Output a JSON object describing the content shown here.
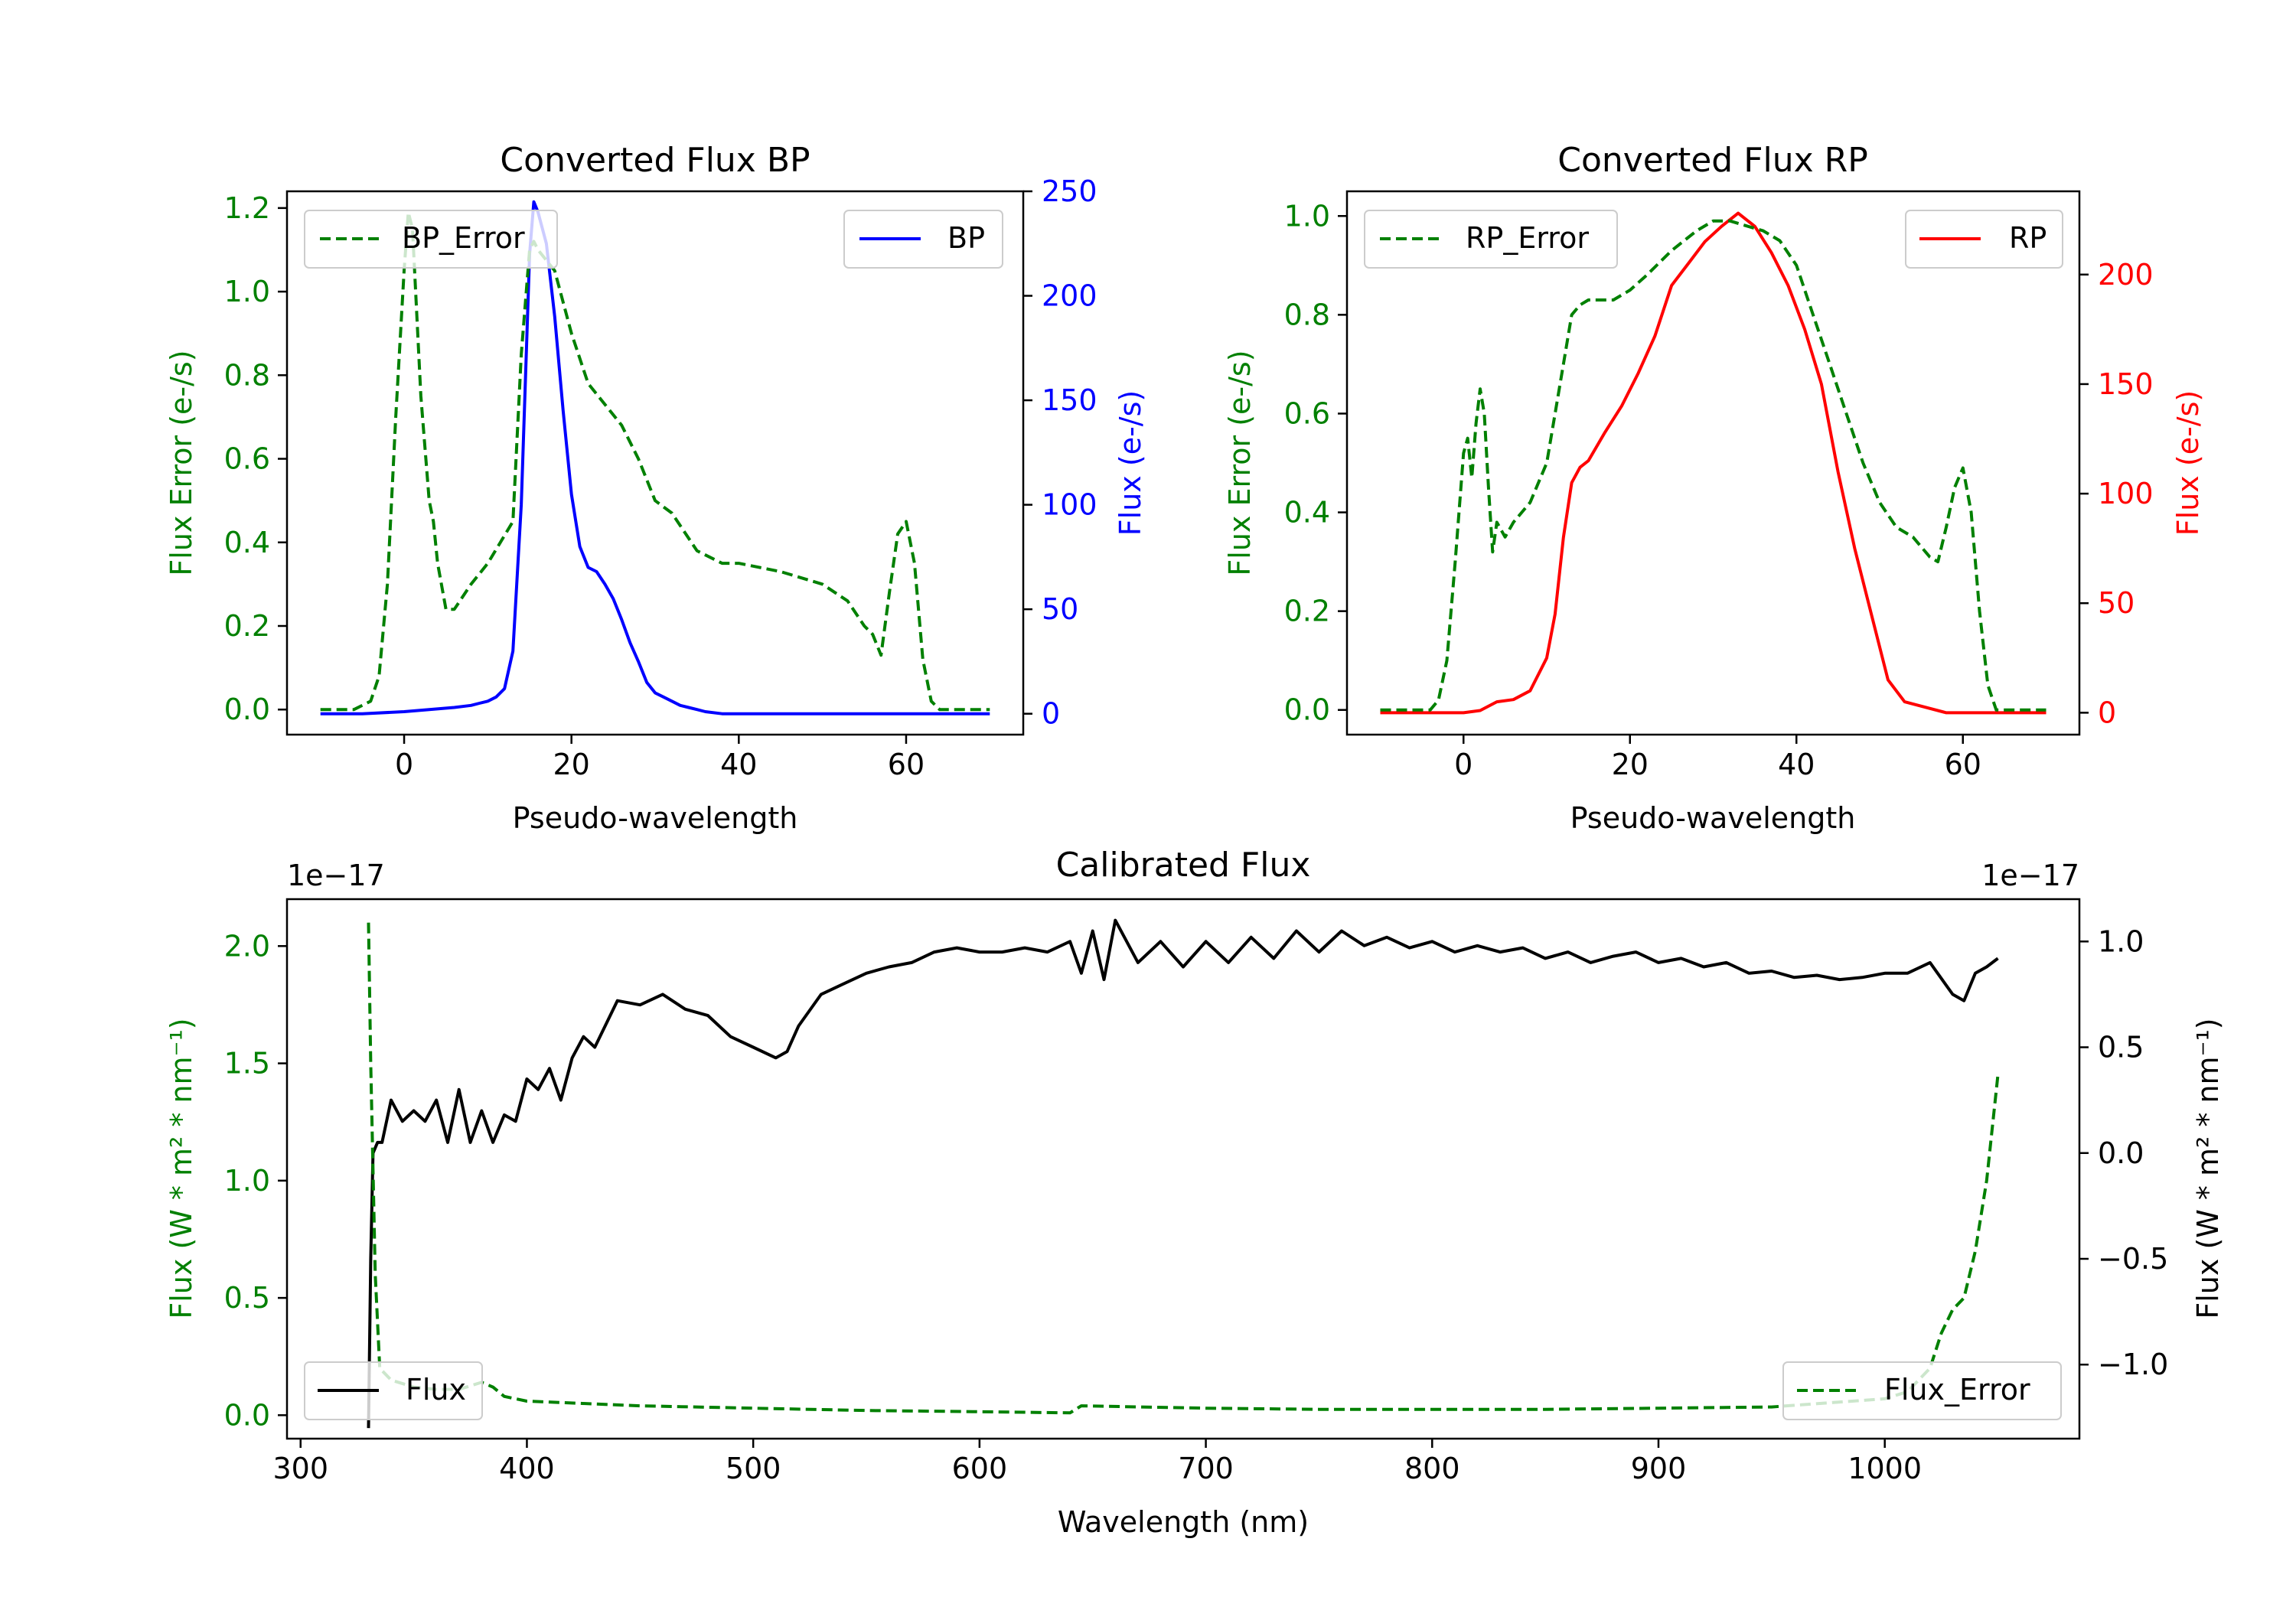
{
  "colors": {
    "error": "#008000",
    "bp": "#0000ff",
    "rp": "#ff0000",
    "flux": "#000000"
  },
  "chart_data": [
    {
      "id": "bp",
      "type": "line",
      "title": "Converted Flux BP",
      "xlabel": "Pseudo-wavelength",
      "ylabel_left": "Flux Error (e-/s)",
      "ylabel_right": "Flux (e-/s)",
      "xlim": [
        -14,
        74
      ],
      "ylim_left": [
        -0.06,
        1.24
      ],
      "ylim_right": [
        -10,
        250
      ],
      "xticks": [
        0,
        20,
        40,
        60
      ],
      "yticks_left": [
        0.0,
        0.2,
        0.4,
        0.6,
        0.8,
        1.0,
        1.2
      ],
      "yticks_right": [
        0,
        50,
        100,
        150,
        200,
        250
      ],
      "legend_left": "BP_Error",
      "legend_right": "BP",
      "error_series": {
        "name": "BP_Error",
        "x": [
          -10,
          -6,
          -4,
          -3,
          -2,
          -1,
          0,
          0.5,
          1,
          2,
          3,
          3.5,
          4,
          5,
          6,
          8,
          10,
          13,
          14,
          15,
          15.5,
          16,
          18,
          20,
          22,
          24,
          26,
          28,
          30,
          32,
          35,
          38,
          40,
          45,
          50,
          53,
          55,
          56,
          57,
          58,
          59,
          60,
          61,
          62,
          63,
          64,
          65,
          70
        ],
        "y": [
          0,
          0,
          0.02,
          0.08,
          0.3,
          0.7,
          1.05,
          1.19,
          1.15,
          0.75,
          0.5,
          0.45,
          0.35,
          0.24,
          0.24,
          0.3,
          0.35,
          0.45,
          0.85,
          1.1,
          1.12,
          1.1,
          1.05,
          0.9,
          0.78,
          0.73,
          0.68,
          0.6,
          0.5,
          0.47,
          0.38,
          0.35,
          0.35,
          0.33,
          0.3,
          0.26,
          0.2,
          0.18,
          0.13,
          0.28,
          0.42,
          0.45,
          0.35,
          0.12,
          0.02,
          0,
          0,
          0
        ]
      },
      "value_series": {
        "name": "BP",
        "x": [
          -10,
          -5,
          0,
          3,
          6,
          8,
          9,
          10,
          11,
          12,
          13,
          14,
          15,
          15.5,
          16,
          17,
          18,
          19,
          20,
          21,
          22,
          23,
          24,
          25,
          26,
          27,
          28,
          29,
          30,
          31,
          32,
          33,
          34,
          35,
          36,
          38,
          40,
          45,
          50,
          55,
          60,
          70
        ],
        "y": [
          0,
          0,
          1,
          2,
          3,
          4,
          5,
          6,
          8,
          12,
          30,
          100,
          220,
          245,
          240,
          225,
          190,
          145,
          105,
          80,
          70,
          68,
          62,
          55,
          45,
          34,
          25,
          15,
          10,
          8,
          6,
          4,
          3,
          2,
          1,
          0,
          0,
          0,
          0,
          0,
          0,
          0
        ]
      }
    },
    {
      "id": "rp",
      "type": "line",
      "title": "Converted Flux RP",
      "xlabel": "Pseudo-wavelength",
      "ylabel_left": "Flux Error (e-/s)",
      "ylabel_right": "Flux (e-/s)",
      "xlim": [
        -14,
        74
      ],
      "ylim_left": [
        -0.05,
        1.05
      ],
      "ylim_right": [
        -10,
        238
      ],
      "xticks": [
        0,
        20,
        40,
        60
      ],
      "yticks_left": [
        0.0,
        0.2,
        0.4,
        0.6,
        0.8,
        1.0
      ],
      "yticks_right": [
        0,
        50,
        100,
        150,
        200
      ],
      "legend_left": "RP_Error",
      "legend_right": "RP",
      "error_series": {
        "name": "RP_Error",
        "x": [
          -10,
          -4,
          -3,
          -2,
          -1,
          0,
          0.5,
          1,
          1.5,
          2,
          2.5,
          3,
          3.5,
          4,
          5,
          6,
          8,
          10,
          12,
          13,
          14,
          15,
          18,
          20,
          22,
          25,
          28,
          30,
          32,
          34,
          36,
          38,
          40,
          42,
          44,
          46,
          48,
          50,
          52,
          54,
          55,
          56,
          57,
          58,
          59,
          60,
          61,
          62,
          63,
          64,
          70
        ],
        "y": [
          0,
          0,
          0.02,
          0.1,
          0.3,
          0.52,
          0.55,
          0.47,
          0.58,
          0.65,
          0.6,
          0.45,
          0.32,
          0.38,
          0.35,
          0.38,
          0.42,
          0.5,
          0.7,
          0.8,
          0.82,
          0.83,
          0.83,
          0.85,
          0.88,
          0.93,
          0.97,
          0.99,
          0.99,
          0.98,
          0.97,
          0.95,
          0.9,
          0.8,
          0.7,
          0.6,
          0.5,
          0.42,
          0.37,
          0.35,
          0.33,
          0.31,
          0.3,
          0.37,
          0.45,
          0.49,
          0.4,
          0.2,
          0.05,
          0,
          0
        ]
      },
      "value_series": {
        "name": "RP",
        "x": [
          -10,
          -5,
          0,
          2,
          4,
          6,
          8,
          10,
          11,
          12,
          13,
          14,
          15,
          17,
          19,
          21,
          23,
          25,
          27,
          29,
          31,
          33,
          35,
          37,
          39,
          41,
          43,
          45,
          47,
          49,
          51,
          53,
          55,
          58,
          60,
          70
        ],
        "y": [
          0,
          0,
          0,
          1,
          5,
          6,
          10,
          25,
          45,
          80,
          105,
          112,
          115,
          128,
          140,
          155,
          172,
          195,
          205,
          215,
          222,
          228,
          222,
          210,
          195,
          175,
          150,
          110,
          75,
          45,
          15,
          5,
          3,
          0,
          0,
          0
        ]
      }
    },
    {
      "id": "cal",
      "type": "line",
      "title": "Calibrated Flux",
      "xlabel": "Wavelength (nm)",
      "ylabel_left": "Flux (W * m² * nm⁻¹)",
      "ylabel_right": "Flux (W * m² * nm⁻¹)",
      "offset_left": "1e−17",
      "offset_right": "1e−17",
      "xlim": [
        294,
        1086
      ],
      "ylim_left": [
        -0.1,
        2.2
      ],
      "ylim_right": [
        -1.35,
        1.2
      ],
      "xticks": [
        300,
        400,
        500,
        600,
        700,
        800,
        900,
        1000
      ],
      "yticks_left": [
        0.0,
        0.5,
        1.0,
        1.5,
        2.0
      ],
      "yticks_right": [
        -1.0,
        -0.5,
        0.0,
        0.5,
        1.0
      ],
      "legend_left": "Flux",
      "legend_right": "Flux_Error",
      "error_series": {
        "name": "Flux_Error",
        "x": [
          330,
          331,
          333,
          335,
          340,
          350,
          360,
          370,
          380,
          385,
          390,
          400,
          450,
          500,
          550,
          600,
          640,
          645,
          700,
          750,
          800,
          850,
          900,
          950,
          1000,
          1010,
          1020,
          1025,
          1030,
          1035,
          1040,
          1045,
          1050
        ],
        "y": [
          2.1,
          1.5,
          0.6,
          0.2,
          0.15,
          0.12,
          0.11,
          0.11,
          0.14,
          0.12,
          0.08,
          0.06,
          0.04,
          0.03,
          0.02,
          0.015,
          0.01,
          0.04,
          0.03,
          0.025,
          0.025,
          0.025,
          0.03,
          0.035,
          0.07,
          0.1,
          0.2,
          0.35,
          0.45,
          0.5,
          0.7,
          1.0,
          1.45
        ]
      },
      "value_series": {
        "name": "Flux",
        "x": [
          330,
          331,
          332,
          334,
          336,
          340,
          345,
          350,
          355,
          360,
          365,
          370,
          375,
          380,
          385,
          390,
          395,
          400,
          405,
          410,
          415,
          420,
          425,
          430,
          440,
          450,
          460,
          470,
          480,
          490,
          500,
          510,
          515,
          520,
          530,
          540,
          550,
          560,
          570,
          580,
          590,
          600,
          610,
          620,
          630,
          640,
          645,
          650,
          655,
          660,
          670,
          680,
          690,
          700,
          710,
          720,
          730,
          740,
          750,
          760,
          770,
          780,
          790,
          800,
          810,
          820,
          830,
          840,
          850,
          860,
          870,
          880,
          890,
          900,
          910,
          920,
          930,
          940,
          950,
          960,
          970,
          980,
          990,
          1000,
          1010,
          1020,
          1030,
          1035,
          1040,
          1045,
          1050
        ],
        "y": [
          -1.3,
          -0.5,
          0.0,
          0.05,
          0.05,
          0.25,
          0.15,
          0.2,
          0.15,
          0.25,
          0.05,
          0.3,
          0.05,
          0.2,
          0.05,
          0.18,
          0.15,
          0.35,
          0.3,
          0.4,
          0.25,
          0.45,
          0.55,
          0.5,
          0.72,
          0.7,
          0.75,
          0.68,
          0.65,
          0.55,
          0.5,
          0.45,
          0.48,
          0.6,
          0.75,
          0.8,
          0.85,
          0.88,
          0.9,
          0.95,
          0.97,
          0.95,
          0.95,
          0.97,
          0.95,
          1.0,
          0.85,
          1.05,
          0.82,
          1.1,
          0.9,
          1.0,
          0.88,
          1.0,
          0.9,
          1.02,
          0.92,
          1.05,
          0.95,
          1.05,
          0.98,
          1.02,
          0.97,
          1.0,
          0.95,
          0.98,
          0.95,
          0.97,
          0.92,
          0.95,
          0.9,
          0.93,
          0.95,
          0.9,
          0.92,
          0.88,
          0.9,
          0.85,
          0.86,
          0.83,
          0.84,
          0.82,
          0.83,
          0.85,
          0.85,
          0.9,
          0.75,
          0.72,
          0.85,
          0.88,
          0.92
        ]
      }
    }
  ]
}
